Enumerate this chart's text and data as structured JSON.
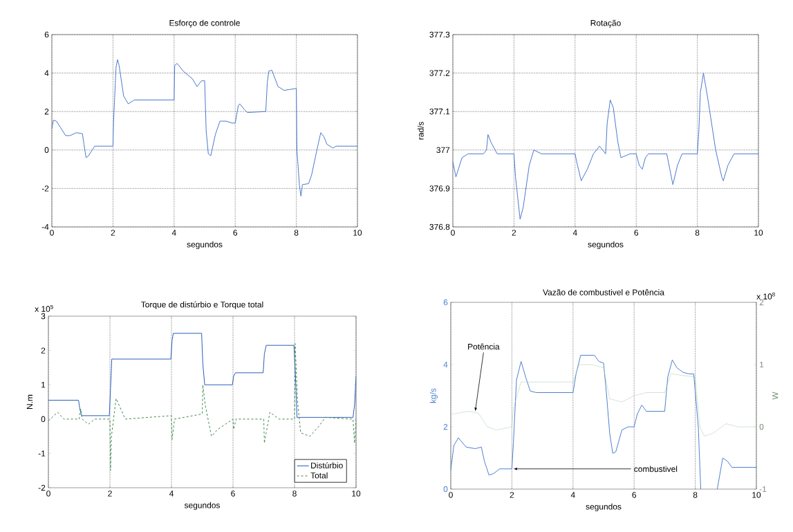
{
  "chart_data": [
    {
      "type": "line",
      "title": "Esforço de controle",
      "xlabel": "segundos",
      "xlim": [
        0,
        10
      ],
      "xticks": [
        0,
        2,
        4,
        6,
        8,
        10
      ],
      "ylim": [
        -4,
        6
      ],
      "yticks": [
        -4,
        -2,
        0,
        2,
        4,
        6
      ],
      "grid": true,
      "marker": "none",
      "series": [
        {
          "color": "#4a78d0",
          "x": [
            0,
            0.05,
            0.15,
            0.45,
            0.6,
            0.8,
            1.0,
            1.05,
            1.12,
            1.2,
            1.4,
            1.6,
            2.0,
            2.02,
            2.1,
            2.15,
            2.2,
            2.35,
            2.5,
            2.7,
            4.0,
            4.02,
            4.1,
            4.3,
            4.6,
            4.75,
            4.9,
            5.0,
            5.05,
            5.12,
            5.2,
            5.35,
            5.5,
            5.7,
            5.9,
            6.0,
            6.1,
            6.15,
            6.3,
            6.4,
            7.0,
            7.05,
            7.1,
            7.2,
            7.4,
            7.6,
            7.8,
            8.0,
            8.02,
            8.1,
            8.15,
            8.2,
            8.4,
            8.5,
            8.7,
            8.8,
            8.9,
            9.0,
            9.2,
            9.3,
            10
          ],
          "values": [
            1.1,
            1.55,
            1.5,
            0.75,
            0.75,
            0.9,
            0.85,
            0.3,
            -0.4,
            -0.3,
            0.2,
            0.2,
            0.2,
            1.5,
            4.3,
            4.7,
            4.4,
            2.8,
            2.4,
            2.6,
            2.6,
            4.4,
            4.5,
            4.1,
            3.7,
            3.3,
            3.6,
            3.6,
            1.0,
            -0.2,
            -0.3,
            0.8,
            1.5,
            1.5,
            1.4,
            1.4,
            2.3,
            2.4,
            2.1,
            1.95,
            2.0,
            3.5,
            4.1,
            4.15,
            3.3,
            3.1,
            3.15,
            3.2,
            0,
            -1.8,
            -2.4,
            -1.8,
            -1.75,
            -1.3,
            0.2,
            0.9,
            0.7,
            0.3,
            0.1,
            0.2,
            0.2
          ]
        }
      ]
    },
    {
      "type": "line",
      "title": "Rotação",
      "xlabel": "segundos",
      "ylabel": "rad/s",
      "xlim": [
        0,
        10
      ],
      "xticks": [
        0,
        2,
        4,
        6,
        8,
        10
      ],
      "ylim": [
        376.8,
        377.3
      ],
      "yticks": [
        376.8,
        376.9,
        377,
        377.1,
        377.2,
        377.3
      ],
      "grid": true,
      "marker": "none",
      "series": [
        {
          "color": "#4a78d0",
          "x": [
            0,
            0.1,
            0.3,
            0.5,
            1.0,
            1.1,
            1.15,
            1.25,
            1.45,
            2.0,
            2.05,
            2.2,
            2.3,
            2.5,
            2.65,
            2.9,
            4.0,
            4.05,
            4.2,
            4.4,
            4.6,
            4.8,
            5.0,
            5.05,
            5.15,
            5.25,
            5.4,
            5.5,
            5.8,
            6.0,
            6.1,
            6.2,
            6.3,
            6.4,
            7.0,
            7.1,
            7.2,
            7.35,
            7.5,
            8.0,
            8.05,
            8.1,
            8.2,
            8.35,
            8.6,
            8.8,
            8.85,
            9.0,
            9.2,
            10
          ],
          "values": [
            376.97,
            376.93,
            376.98,
            376.99,
            376.99,
            377.0,
            377.04,
            377.02,
            376.99,
            376.99,
            376.93,
            376.82,
            376.85,
            376.96,
            377.0,
            376.99,
            376.99,
            376.97,
            376.92,
            376.95,
            376.99,
            377.01,
            376.99,
            377.07,
            377.13,
            377.11,
            377.02,
            376.98,
            376.99,
            376.99,
            376.96,
            376.95,
            376.98,
            376.99,
            376.99,
            376.95,
            376.91,
            376.96,
            376.99,
            376.99,
            377.05,
            377.15,
            377.2,
            377.13,
            377.0,
            376.93,
            376.92,
            376.96,
            376.99,
            376.99
          ]
        }
      ]
    },
    {
      "type": "line",
      "title": "Torque de distúrbio e Torque total",
      "xlabel": "segundos",
      "ylabel": "N.m",
      "xlim": [
        0,
        10
      ],
      "xticks": [
        0,
        2,
        4,
        6,
        8,
        10
      ],
      "ylim": [
        -2,
        3
      ],
      "yticks": [
        -2,
        -1,
        0,
        1,
        2,
        3
      ],
      "grid": "x",
      "marker": "none",
      "legend": "bottom right",
      "annotations": [
        "x 10$^{5}$"
      ],
      "series": [
        {
          "name": "Distúrbio",
          "color": "#2a5cc0",
          "line_style": "solid",
          "x": [
            0,
            0.98,
            1.02,
            1.08,
            1.98,
            2.02,
            2.06,
            3.98,
            4.02,
            4.06,
            4.98,
            5.02,
            5.08,
            5.98,
            6.02,
            6.08,
            6.98,
            7.02,
            7.08,
            7.98,
            8.02,
            8.08,
            9.9,
            9.95,
            10
          ],
          "values": [
            0.55,
            0.55,
            0.3,
            0.1,
            0.1,
            0.9,
            1.75,
            1.75,
            2.3,
            2.5,
            2.5,
            1.6,
            1.0,
            1.0,
            1.25,
            1.35,
            1.35,
            1.9,
            2.15,
            2.15,
            1.5,
            0.05,
            0.05,
            0.4,
            1.25
          ]
        },
        {
          "name": "Total",
          "color": "#3a8a4a",
          "line_style": "dashed",
          "x": [
            0,
            0.3,
            0.5,
            1.0,
            1.05,
            1.1,
            1.3,
            1.5,
            2.0,
            2.02,
            2.05,
            2.2,
            2.5,
            4.0,
            4.02,
            4.1,
            5.0,
            5.02,
            5.1,
            5.3,
            5.5,
            6.0,
            6.02,
            6.1,
            7.0,
            7.02,
            7.2,
            7.5,
            8.0,
            8.02,
            8.1,
            8.2,
            8.5,
            8.8,
            9.0,
            9.9,
            9.95,
            10
          ],
          "values": [
            -0.05,
            0.2,
            0,
            0,
            0.3,
            0,
            -0.15,
            0,
            0,
            -1.5,
            -0.5,
            0.6,
            0,
            0.1,
            -0.6,
            0,
            0.15,
            1.0,
            0.4,
            -0.5,
            -0.3,
            0,
            -0.3,
            0,
            0,
            -0.7,
            0.2,
            0,
            0,
            2.2,
            0.5,
            -0.4,
            -0.5,
            -0.2,
            0.05,
            0,
            -0.7,
            0
          ]
        }
      ]
    },
    {
      "type": "line",
      "title": "Vazão de combustivel e Potência",
      "xlabel": "segundos",
      "ylabel": "kg/s",
      "y2label": "W",
      "xlim": [
        0,
        10
      ],
      "xticks": [
        0,
        2,
        4,
        6,
        8,
        10
      ],
      "ylim": [
        0,
        6
      ],
      "yticks": [
        0,
        2,
        4,
        6
      ],
      "y2lim": [
        -1,
        2
      ],
      "y2ticks": [
        -1,
        0,
        1,
        2
      ],
      "grid": "x",
      "marker": "none",
      "annotations": [
        {
          "text": "Potência",
          "x": 0.8,
          "y": 2.5
        },
        {
          "text": "combustivel",
          "x": 2.05,
          "y": 0.65
        },
        "x 10$^{8}$"
      ],
      "series": [
        {
          "color": "#4f7fd0",
          "line_style": "solid",
          "x": [
            0,
            0.1,
            0.25,
            0.5,
            0.8,
            1.0,
            1.1,
            1.25,
            1.4,
            1.6,
            2.0,
            2.05,
            2.15,
            2.3,
            2.45,
            2.6,
            2.8,
            4.0,
            4.1,
            4.25,
            4.7,
            4.85,
            5.0,
            5.1,
            5.2,
            5.3,
            5.4,
            5.6,
            5.8,
            6.0,
            6.1,
            6.25,
            6.4,
            7.0,
            7.1,
            7.25,
            7.4,
            7.6,
            7.8,
            7.95,
            8.1,
            8.18,
            8.45,
            8.72,
            8.9,
            9.05,
            9.2,
            10
          ],
          "values": [
            0.6,
            1.4,
            1.65,
            1.35,
            1.3,
            1.35,
            0.9,
            0.45,
            0.5,
            0.65,
            0.65,
            1.5,
            3.5,
            4.1,
            3.6,
            3.15,
            3.1,
            3.1,
            3.7,
            4.3,
            4.3,
            4.1,
            4.05,
            3.0,
            1.8,
            1.15,
            1.2,
            1.9,
            2.0,
            2.0,
            2.4,
            2.7,
            2.5,
            2.5,
            3.6,
            4.15,
            3.9,
            3.75,
            3.7,
            3.7,
            2.0,
            0,
            null,
            0,
            1.0,
            0.9,
            0.7,
            0.7
          ]
        },
        {
          "color": "#a8c8a8",
          "line_style": "dotted",
          "axis": "y2",
          "x": [
            0,
            0.6,
            0.9,
            1.2,
            1.5,
            2.0,
            2.05,
            2.3,
            4.0,
            4.2,
            4.6,
            5.0,
            5.2,
            5.6,
            6.0,
            6.4,
            7.0,
            7.2,
            8.0,
            8.15,
            8.3,
            8.6,
            9.0,
            9.4,
            10
          ],
          "values": [
            0.2,
            0.25,
            0.22,
            0.0,
            -0.05,
            0.0,
            0.3,
            0.72,
            0.72,
            1.0,
            1.0,
            0.95,
            0.45,
            0.4,
            0.5,
            0.55,
            0.55,
            0.85,
            0.8,
            0.0,
            -0.15,
            -0.1,
            0.05,
            0.0,
            0.0
          ]
        }
      ]
    }
  ]
}
